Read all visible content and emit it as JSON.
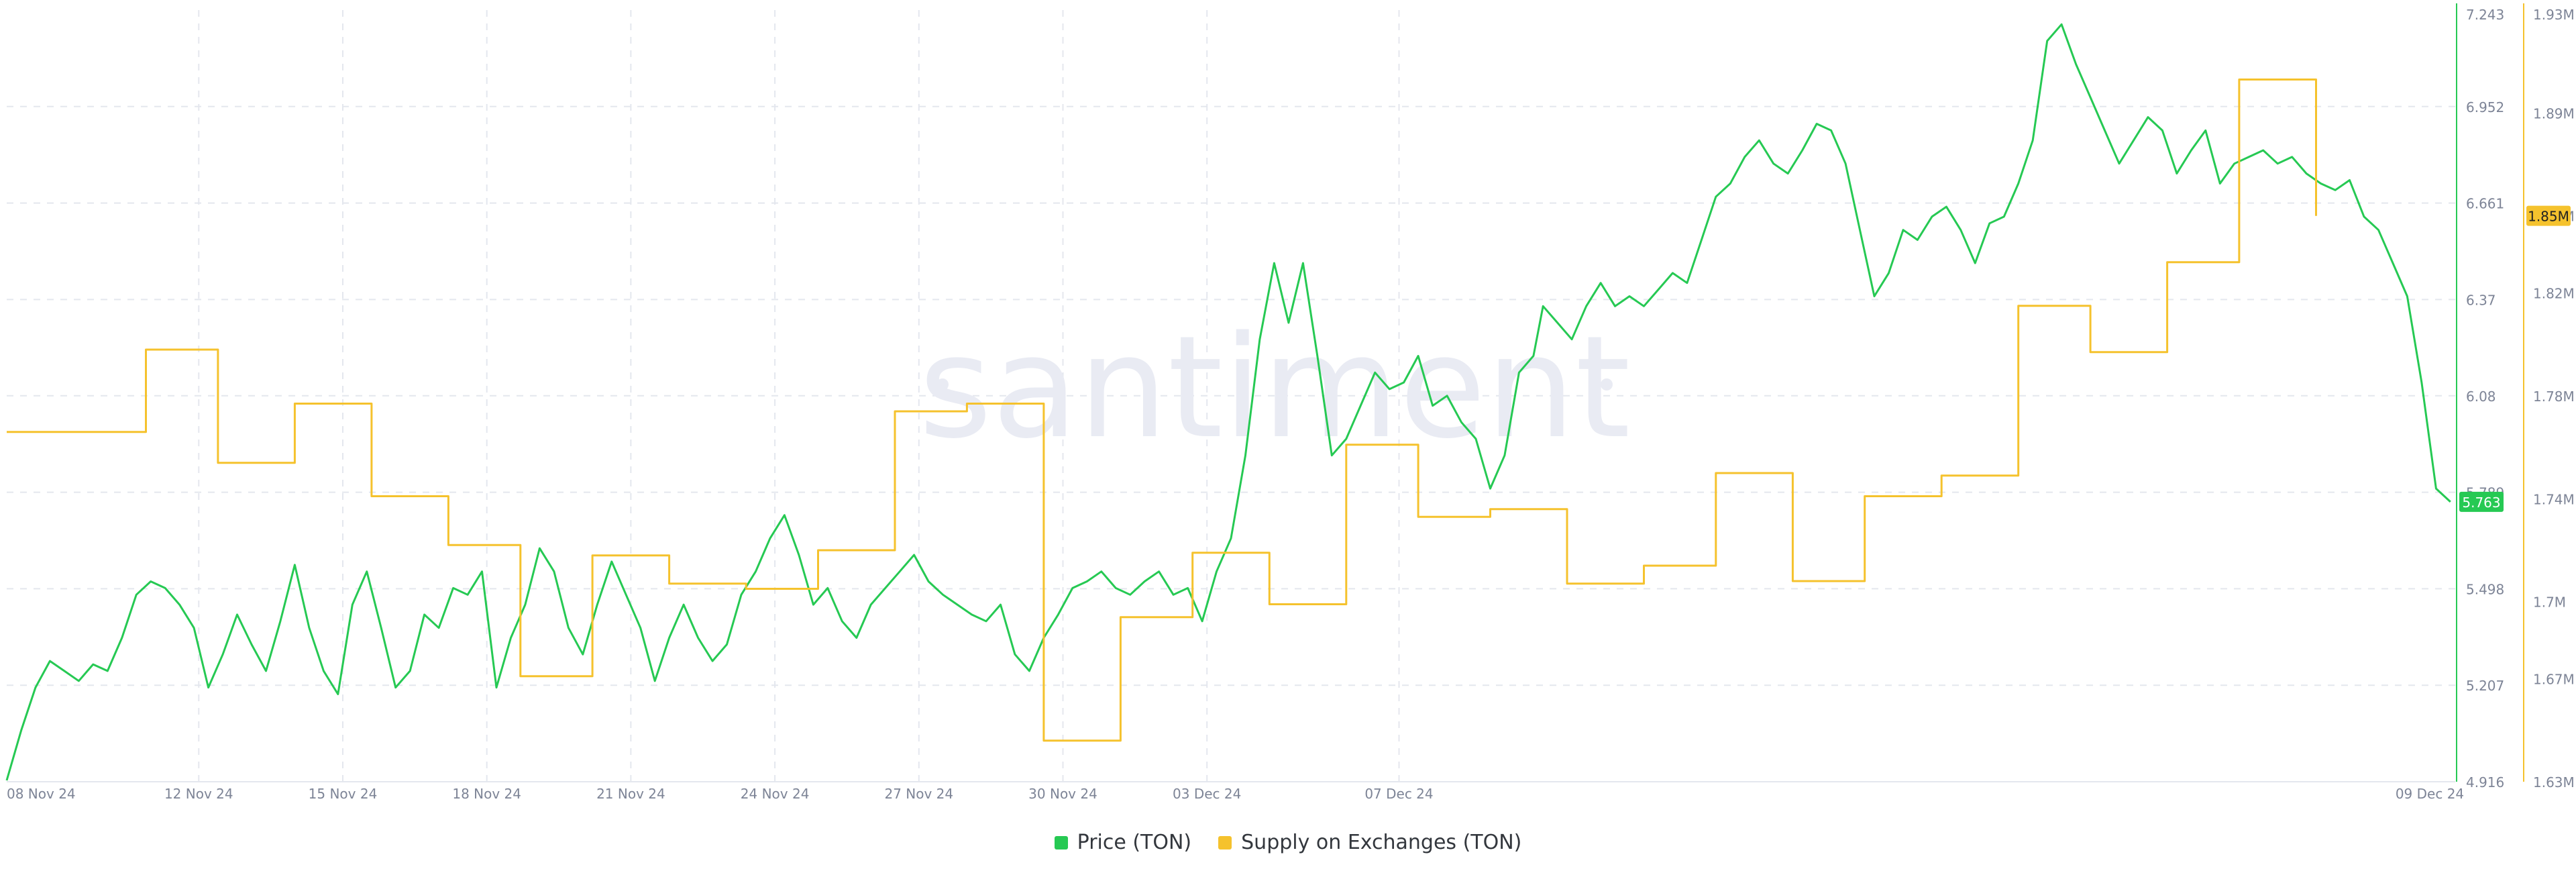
{
  "watermark": "santiment",
  "chart_data": {
    "type": "line",
    "x_ticks": [
      "08 Nov 24",
      "12 Nov 24",
      "15 Nov 24",
      "18 Nov 24",
      "21 Nov 24",
      "24 Nov 24",
      "27 Nov 24",
      "30 Nov 24",
      "03 Dec 24",
      "07 Dec 24",
      "09 Dec 24"
    ],
    "x_range": [
      "08 Nov 24",
      "09 Dec 24"
    ],
    "grid": true,
    "legend_position": "bottom-center",
    "y_left": {
      "ticks": [
        "7.243",
        "6.952",
        "6.661",
        "6.37",
        "6.08",
        "5.789",
        "5.498",
        "5.207",
        "4.916"
      ],
      "range": [
        4.916,
        7.243
      ]
    },
    "y_right": {
      "ticks": [
        "1.93M",
        "1.89M",
        "1.85M",
        "1.82M",
        "1.78M",
        "1.74M",
        "1.7M",
        "1.67M",
        "1.63M"
      ],
      "range": [
        1.63,
        1.93
      ],
      "unit": "M"
    },
    "series": [
      {
        "name": "Price (TON)",
        "color": "#26c953",
        "axis": "left",
        "last_value_label": "5.763",
        "points": [
          [
            0.0,
            4.92
          ],
          [
            0.3,
            5.07
          ],
          [
            0.6,
            5.2
          ],
          [
            0.9,
            5.28
          ],
          [
            1.2,
            5.25
          ],
          [
            1.5,
            5.22
          ],
          [
            1.8,
            5.27
          ],
          [
            2.1,
            5.25
          ],
          [
            2.4,
            5.35
          ],
          [
            2.7,
            5.48
          ],
          [
            3.0,
            5.52
          ],
          [
            3.3,
            5.5
          ],
          [
            3.6,
            5.45
          ],
          [
            3.9,
            5.38
          ],
          [
            4.2,
            5.2
          ],
          [
            4.5,
            5.3
          ],
          [
            4.8,
            5.42
          ],
          [
            5.1,
            5.33
          ],
          [
            5.4,
            5.25
          ],
          [
            5.7,
            5.4
          ],
          [
            6.0,
            5.57
          ],
          [
            6.3,
            5.38
          ],
          [
            6.6,
            5.25
          ],
          [
            6.9,
            5.18
          ],
          [
            7.2,
            5.45
          ],
          [
            7.5,
            5.55
          ],
          [
            7.8,
            5.38
          ],
          [
            8.1,
            5.2
          ],
          [
            8.4,
            5.25
          ],
          [
            8.7,
            5.42
          ],
          [
            9.0,
            5.38
          ],
          [
            9.3,
            5.5
          ],
          [
            9.6,
            5.48
          ],
          [
            9.9,
            5.55
          ],
          [
            10.2,
            5.2
          ],
          [
            10.5,
            5.35
          ],
          [
            10.8,
            5.45
          ],
          [
            11.1,
            5.62
          ],
          [
            11.4,
            5.55
          ],
          [
            11.7,
            5.38
          ],
          [
            12.0,
            5.3
          ],
          [
            12.3,
            5.45
          ],
          [
            12.6,
            5.58
          ],
          [
            12.9,
            5.48
          ],
          [
            13.2,
            5.38
          ],
          [
            13.5,
            5.22
          ],
          [
            13.8,
            5.35
          ],
          [
            14.1,
            5.45
          ],
          [
            14.4,
            5.35
          ],
          [
            14.7,
            5.28
          ],
          [
            15.0,
            5.33
          ],
          [
            15.3,
            5.48
          ],
          [
            15.6,
            5.55
          ],
          [
            15.9,
            5.65
          ],
          [
            16.2,
            5.72
          ],
          [
            16.5,
            5.6
          ],
          [
            16.8,
            5.45
          ],
          [
            17.1,
            5.5
          ],
          [
            17.4,
            5.4
          ],
          [
            17.7,
            5.35
          ],
          [
            18.0,
            5.45
          ],
          [
            18.3,
            5.5
          ],
          [
            18.6,
            5.55
          ],
          [
            18.9,
            5.6
          ],
          [
            19.2,
            5.52
          ],
          [
            19.5,
            5.48
          ],
          [
            19.8,
            5.45
          ],
          [
            20.1,
            5.42
          ],
          [
            20.4,
            5.4
          ],
          [
            20.7,
            5.45
          ],
          [
            21.0,
            5.3
          ],
          [
            21.3,
            5.25
          ],
          [
            21.6,
            5.35
          ],
          [
            21.9,
            5.42
          ],
          [
            22.2,
            5.5
          ],
          [
            22.5,
            5.52
          ],
          [
            22.8,
            5.55
          ],
          [
            23.1,
            5.5
          ],
          [
            23.4,
            5.48
          ],
          [
            23.7,
            5.52
          ],
          [
            24.0,
            5.55
          ],
          [
            24.3,
            5.48
          ],
          [
            24.6,
            5.5
          ],
          [
            24.9,
            5.4
          ],
          [
            25.2,
            5.55
          ],
          [
            25.5,
            5.65
          ],
          [
            25.8,
            5.9
          ],
          [
            26.1,
            6.25
          ],
          [
            26.4,
            6.48
          ],
          [
            26.7,
            6.3
          ],
          [
            27.0,
            6.48
          ],
          [
            27.3,
            6.2
          ],
          [
            27.6,
            5.9
          ],
          [
            27.9,
            5.95
          ],
          [
            28.2,
            6.05
          ],
          [
            28.5,
            6.15
          ],
          [
            28.8,
            6.1
          ],
          [
            29.1,
            6.12
          ],
          [
            29.4,
            6.2
          ],
          [
            29.7,
            6.05
          ],
          [
            30.0,
            6.08
          ],
          [
            30.3,
            6.0
          ],
          [
            30.6,
            5.95
          ],
          [
            30.9,
            5.8
          ],
          [
            31.2,
            5.9
          ],
          [
            31.5,
            6.15
          ],
          [
            31.8,
            6.2
          ],
          [
            32.0,
            6.35
          ],
          [
            32.3,
            6.3
          ],
          [
            32.6,
            6.25
          ],
          [
            32.9,
            6.35
          ],
          [
            33.2,
            6.42
          ],
          [
            33.5,
            6.35
          ],
          [
            33.8,
            6.38
          ],
          [
            34.1,
            6.35
          ],
          [
            34.4,
            6.4
          ],
          [
            34.7,
            6.45
          ],
          [
            35.0,
            6.42
          ],
          [
            35.3,
            6.55
          ],
          [
            35.6,
            6.68
          ],
          [
            35.9,
            6.72
          ],
          [
            36.2,
            6.8
          ],
          [
            36.5,
            6.85
          ],
          [
            36.8,
            6.78
          ],
          [
            37.1,
            6.75
          ],
          [
            37.4,
            6.82
          ],
          [
            37.7,
            6.9
          ],
          [
            38.0,
            6.88
          ],
          [
            38.3,
            6.78
          ],
          [
            38.6,
            6.58
          ],
          [
            38.9,
            6.38
          ],
          [
            39.2,
            6.45
          ],
          [
            39.5,
            6.58
          ],
          [
            39.8,
            6.55
          ],
          [
            40.1,
            6.62
          ],
          [
            40.4,
            6.65
          ],
          [
            40.7,
            6.58
          ],
          [
            41.0,
            6.48
          ],
          [
            41.3,
            6.6
          ],
          [
            41.6,
            6.62
          ],
          [
            41.9,
            6.72
          ],
          [
            42.2,
            6.85
          ],
          [
            42.5,
            7.15
          ],
          [
            42.8,
            7.2
          ],
          [
            43.1,
            7.08
          ],
          [
            43.4,
            6.98
          ],
          [
            43.7,
            6.88
          ],
          [
            44.0,
            6.78
          ],
          [
            44.3,
            6.85
          ],
          [
            44.6,
            6.92
          ],
          [
            44.9,
            6.88
          ],
          [
            45.2,
            6.75
          ],
          [
            45.5,
            6.82
          ],
          [
            45.8,
            6.88
          ],
          [
            46.1,
            6.72
          ],
          [
            46.4,
            6.78
          ],
          [
            46.7,
            6.8
          ],
          [
            47.0,
            6.82
          ],
          [
            47.3,
            6.78
          ],
          [
            47.6,
            6.8
          ],
          [
            47.9,
            6.75
          ],
          [
            48.2,
            6.72
          ],
          [
            48.5,
            6.7
          ],
          [
            48.8,
            6.73
          ],
          [
            49.1,
            6.62
          ],
          [
            49.4,
            6.58
          ],
          [
            49.7,
            6.48
          ],
          [
            50.0,
            6.38
          ],
          [
            50.3,
            6.12
          ],
          [
            50.6,
            5.8
          ],
          [
            50.9,
            5.76
          ]
        ]
      },
      {
        "name": "Supply on Exchanges (TON)",
        "color": "#f5c22d",
        "axis": "right",
        "last_value_label": "1.85M",
        "points": [
          [
            0.0,
            1.766
          ],
          [
            2.9,
            1.766
          ],
          [
            2.9,
            1.798
          ],
          [
            4.4,
            1.798
          ],
          [
            4.4,
            1.754
          ],
          [
            6.0,
            1.754
          ],
          [
            6.0,
            1.777
          ],
          [
            7.6,
            1.777
          ],
          [
            7.6,
            1.741
          ],
          [
            9.2,
            1.741
          ],
          [
            9.2,
            1.722
          ],
          [
            10.7,
            1.722
          ],
          [
            10.7,
            1.671
          ],
          [
            12.2,
            1.671
          ],
          [
            12.2,
            1.718
          ],
          [
            13.8,
            1.718
          ],
          [
            13.8,
            1.707
          ],
          [
            15.4,
            1.707
          ],
          [
            15.4,
            1.705
          ],
          [
            16.9,
            1.705
          ],
          [
            16.9,
            1.72
          ],
          [
            18.5,
            1.72
          ],
          [
            18.5,
            1.774
          ],
          [
            20.0,
            1.774
          ],
          [
            20.0,
            1.777
          ],
          [
            21.6,
            1.777
          ],
          [
            21.6,
            1.646
          ],
          [
            23.2,
            1.646
          ],
          [
            23.2,
            1.694
          ],
          [
            24.7,
            1.694
          ],
          [
            24.7,
            1.719
          ],
          [
            26.3,
            1.719
          ],
          [
            26.3,
            1.699
          ],
          [
            27.9,
            1.699
          ],
          [
            27.9,
            1.761
          ],
          [
            29.4,
            1.761
          ],
          [
            29.4,
            1.733
          ],
          [
            30.9,
            1.733
          ],
          [
            30.9,
            1.736
          ],
          [
            32.5,
            1.736
          ],
          [
            32.5,
            1.707
          ],
          [
            34.1,
            1.707
          ],
          [
            34.1,
            1.714
          ],
          [
            35.6,
            1.714
          ],
          [
            35.6,
            1.75
          ],
          [
            37.2,
            1.75
          ],
          [
            37.2,
            1.708
          ],
          [
            38.7,
            1.708
          ],
          [
            38.7,
            1.741
          ],
          [
            40.3,
            1.741
          ],
          [
            40.3,
            1.749
          ],
          [
            41.9,
            1.749
          ],
          [
            41.9,
            1.815
          ],
          [
            43.4,
            1.815
          ],
          [
            43.4,
            1.797
          ],
          [
            45.0,
            1.797
          ],
          [
            45.0,
            1.832
          ],
          [
            46.5,
            1.832
          ],
          [
            46.5,
            1.903
          ],
          [
            48.1,
            1.903
          ],
          [
            48.1,
            1.85
          ]
        ]
      }
    ]
  }
}
